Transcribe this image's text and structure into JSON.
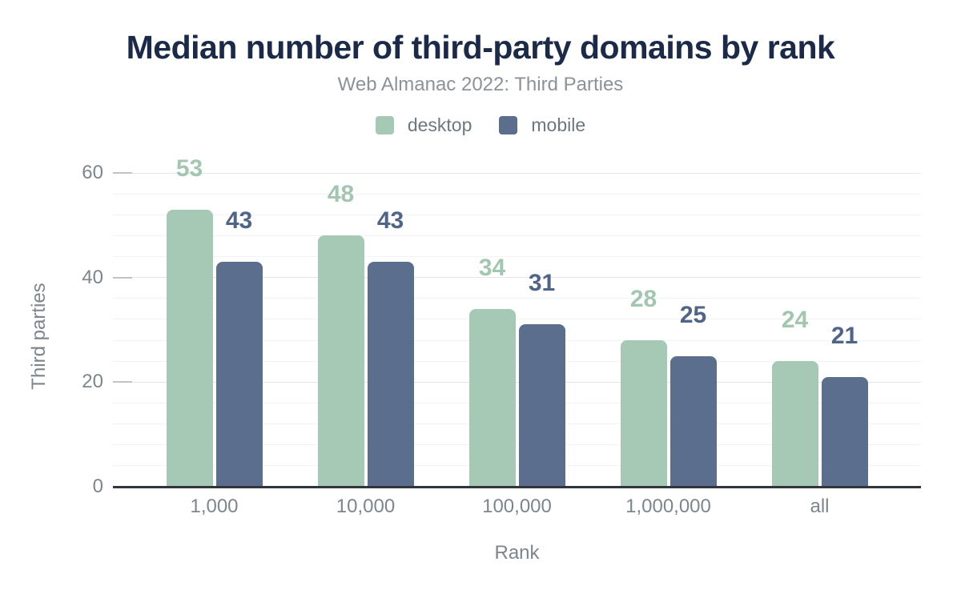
{
  "chart_data": {
    "type": "bar",
    "title": "Median number of third-party domains by rank",
    "subtitle": "Web Almanac 2022: Third Parties",
    "xlabel": "Rank",
    "ylabel": "Third parties",
    "categories": [
      "1,000",
      "10,000",
      "100,000",
      "1,000,000",
      "all"
    ],
    "series": [
      {
        "name": "desktop",
        "color": "#a6c9b5",
        "label_color": "#a3c6b0",
        "values": [
          53,
          48,
          34,
          28,
          24
        ]
      },
      {
        "name": "mobile",
        "color": "#5b6e8d",
        "label_color": "#50648a",
        "values": [
          43,
          43,
          31,
          25,
          21
        ]
      }
    ],
    "ylim": [
      0,
      60
    ],
    "yticks": [
      0,
      20,
      40,
      60
    ],
    "minor_grid_step": 4,
    "grid": true,
    "legend_position": "top",
    "bar_value_labels": true
  },
  "colors": {
    "background": "#ffffff",
    "title": "#1b2a49",
    "subtitle": "#8b9298",
    "axis_text": "#7d858d",
    "legend_text": "#6e767e",
    "grid_major": "#e3e5ea",
    "grid_minor": "#f2f3f6",
    "tick_mark": "#c0c4ca",
    "axis_line": "#31353c"
  }
}
